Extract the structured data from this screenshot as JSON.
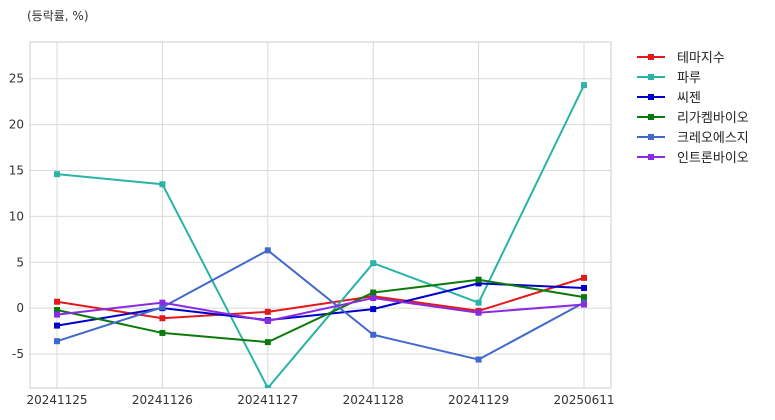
{
  "chart_data": {
    "type": "line",
    "title": "",
    "unit_label": "(등락률, %)",
    "xlabel": "",
    "ylabel": "",
    "categories": [
      "20241125",
      "20241126",
      "20241127",
      "20241128",
      "20241129",
      "20250611"
    ],
    "ylim": [
      -8.7,
      29
    ],
    "yticks": [
      -5,
      0,
      5,
      10,
      15,
      20,
      25
    ],
    "ytick_labels": [
      "-5",
      "0",
      "5",
      "10",
      "15",
      "20",
      "25"
    ],
    "grid": true,
    "legend_position": "right, outside top",
    "series": [
      {
        "name": "테마지수",
        "color": "#e31a1c",
        "values": [
          0.7,
          -1.1,
          -0.4,
          1.3,
          -0.3,
          3.3
        ]
      },
      {
        "name": "파루",
        "color": "#2ab3a6",
        "values": [
          14.6,
          13.5,
          -8.7,
          4.9,
          0.6,
          24.3
        ]
      },
      {
        "name": "씨젠",
        "color": "#0000cc",
        "values": [
          -1.9,
          0.0,
          -1.3,
          -0.1,
          2.7,
          2.2
        ]
      },
      {
        "name": "리가켐바이오",
        "color": "#0a7a0a",
        "values": [
          -0.2,
          -2.7,
          -3.7,
          1.7,
          3.1,
          1.2
        ]
      },
      {
        "name": "크레오에스지",
        "color": "#4169cc",
        "values": [
          -3.6,
          0.1,
          6.3,
          -2.9,
          -5.6,
          0.6
        ]
      },
      {
        "name": "인트론바이오",
        "color": "#8a2be2",
        "values": [
          -0.7,
          0.6,
          -1.4,
          1.1,
          -0.5,
          0.4
        ]
      }
    ]
  }
}
